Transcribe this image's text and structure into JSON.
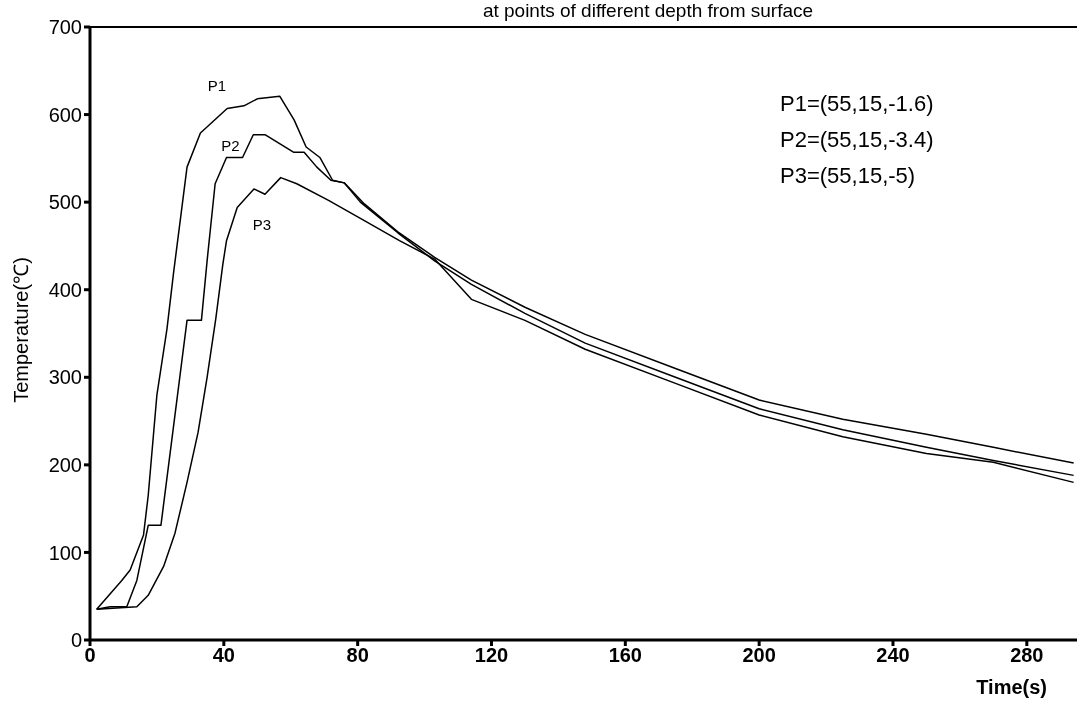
{
  "chart_data": {
    "type": "line",
    "title": "at points of different depth from surface",
    "xlabel": "Time(s)",
    "ylabel": "Temperature(℃)",
    "xlim": [
      0,
      295
    ],
    "xticks": [
      0,
      40,
      80,
      120,
      160,
      200,
      240,
      280
    ],
    "ylim": [
      0,
      700
    ],
    "yticks": [
      0,
      100,
      200,
      300,
      400,
      500,
      600,
      700
    ],
    "marker": "none",
    "line_style": "solid",
    "series": [
      {
        "name": "P1",
        "color": "#000000",
        "x": [
          2,
          9.5,
          12,
          16,
          17.4,
          20,
          23,
          25,
          29,
          33,
          41,
          46,
          50,
          56.7,
          61,
          64.6,
          68.7,
          72.5,
          76,
          82,
          92,
          103,
          114,
          130,
          148,
          175,
          200,
          225,
          250,
          270,
          294
        ],
        "values": [
          35,
          68,
          80,
          120,
          165,
          280,
          355,
          420,
          540,
          579,
          607,
          610,
          618,
          621,
          594,
          563,
          551,
          525,
          522,
          498,
          466,
          437,
          411,
          380,
          349,
          310,
          274,
          252,
          235,
          220,
          202
        ]
      },
      {
        "name": "P2",
        "color": "#000000",
        "x": [
          2,
          6,
          11,
          14,
          17.4,
          21.2,
          29,
          33.3,
          35,
          37.4,
          40.8,
          45.6,
          48.8,
          52.3,
          60.8,
          64,
          67.8,
          72,
          76,
          80.8,
          92,
          103,
          114,
          130,
          148,
          175,
          200,
          225,
          250,
          270,
          294
        ],
        "values": [
          35,
          38,
          38,
          68,
          131,
          131,
          365,
          365,
          433,
          521,
          551,
          551,
          577,
          577,
          557,
          557,
          540,
          525,
          522,
          500,
          465,
          433,
          406,
          373,
          339,
          300,
          264,
          240,
          220,
          205,
          188
        ]
      },
      {
        "name": "P3",
        "color": "#000000",
        "x": [
          2,
          14,
          17.4,
          22,
          25.4,
          29,
          32.3,
          35,
          37.6,
          39.7,
          40.8,
          44,
          49,
          52.3,
          57,
          61.8,
          71.3,
          82,
          92.5,
          103,
          114,
          130,
          148,
          175,
          200,
          225,
          250,
          270,
          294
        ],
        "values": [
          35,
          38,
          51,
          84,
          122,
          180,
          237,
          300,
          367,
          429,
          456,
          494,
          515,
          509,
          528,
          521,
          502,
          479,
          456,
          435,
          389,
          365,
          332,
          293,
          257,
          232,
          213,
          203,
          180
        ]
      }
    ],
    "annotations": [
      "P1=(55,15,-1.6)",
      "P2=(55,15,-3.4)",
      "P3=(55,15,-5)"
    ]
  }
}
